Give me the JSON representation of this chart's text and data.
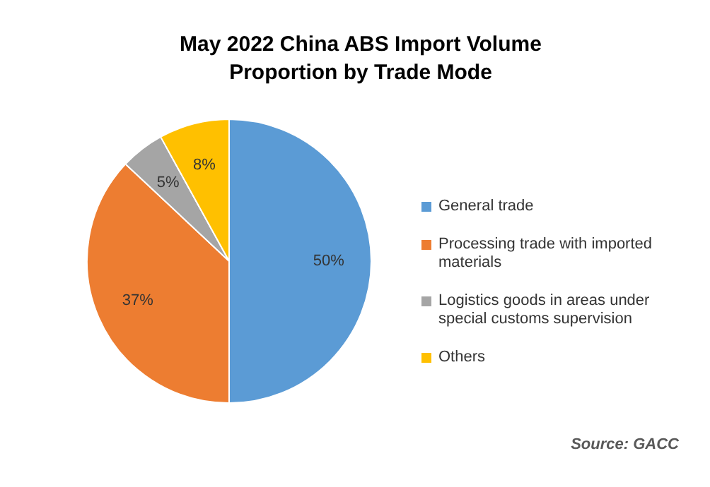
{
  "chart_data": {
    "type": "pie",
    "title": "May 2022 China ABS Import Volume Proportion by Trade Mode",
    "categories": [
      "General trade",
      "Processing trade with imported materials",
      "Logistics goods in areas under special customs supervision",
      "Others"
    ],
    "values": [
      50,
      37,
      5,
      8
    ],
    "colors": [
      "#5b9bd5",
      "#ed7d31",
      "#a5a5a5",
      "#ffc000"
    ],
    "value_labels": [
      "50%",
      "37%",
      "5%",
      "8%"
    ],
    "legend": "right",
    "annotations": [
      "Source: GACC"
    ]
  }
}
